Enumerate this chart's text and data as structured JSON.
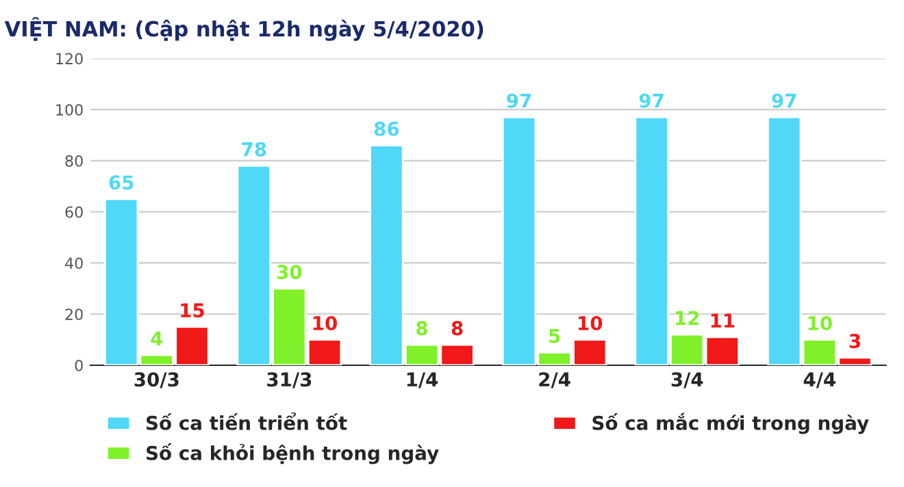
{
  "chart_data": {
    "type": "bar",
    "title": "VIỆT NAM: (Cập nhật 12h ngày 5/4/2020)",
    "categories": [
      "30/3",
      "31/3",
      "1/4",
      "2/4",
      "3/4",
      "4/4"
    ],
    "series": [
      {
        "name": "Số ca tiến triển tốt",
        "color": "#4fd8f7",
        "values": [
          65,
          78,
          86,
          97,
          97,
          97
        ]
      },
      {
        "name": "Số ca khỏi bệnh trong ngày",
        "color": "#7ff02a",
        "values": [
          4,
          30,
          8,
          5,
          12,
          10
        ]
      },
      {
        "name": "Số ca mắc mới trong ngày",
        "color": "#f01818",
        "values": [
          15,
          10,
          8,
          10,
          11,
          3
        ]
      }
    ],
    "ylim": [
      0,
      120
    ],
    "yticks": [
      0,
      20,
      40,
      60,
      80,
      100,
      120
    ],
    "grid": "y",
    "legend": "bottom",
    "data_labels": true
  }
}
